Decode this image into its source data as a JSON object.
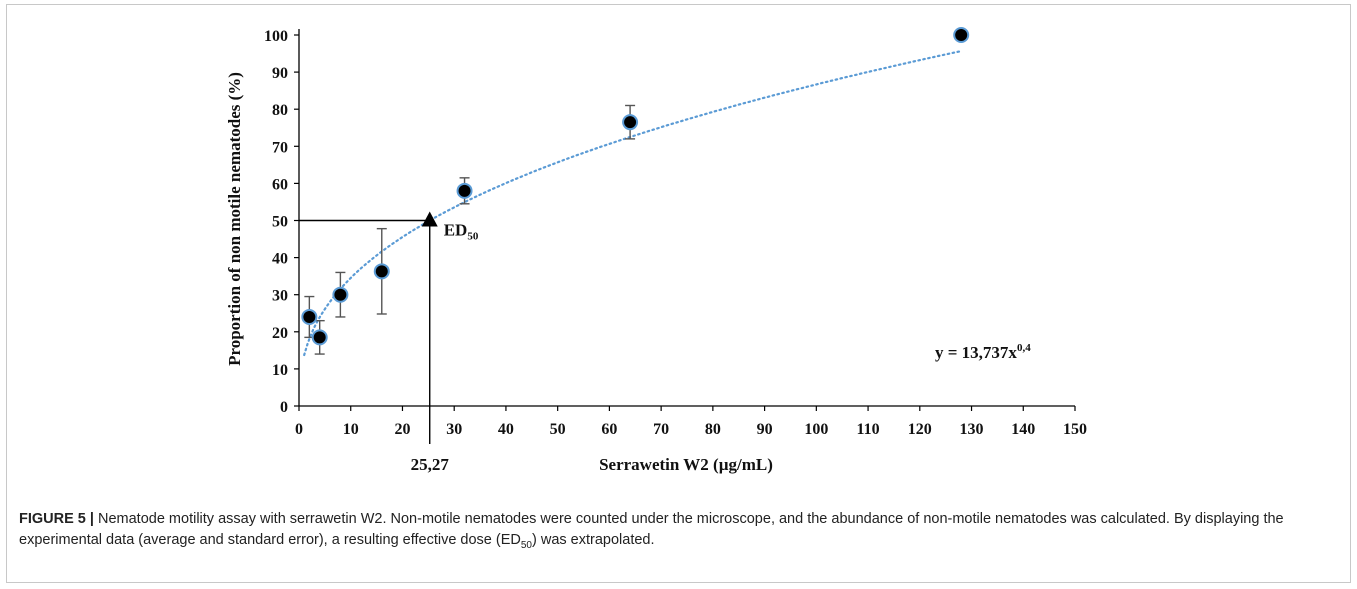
{
  "chart_data": {
    "type": "scatter",
    "xlabel": "Serrawetin W2 (µg/mL)",
    "ylabel": "Proportion of non motile nematodes (%)",
    "xlim": [
      0,
      150
    ],
    "ylim": [
      0,
      100
    ],
    "x_ticks": [
      "0",
      "10",
      "20",
      "30",
      "40",
      "50",
      "60",
      "70",
      "80",
      "90",
      "100",
      "110",
      "120",
      "130",
      "140",
      "150"
    ],
    "y_ticks": [
      "0",
      "10",
      "20",
      "30",
      "40",
      "50",
      "60",
      "70",
      "80",
      "90",
      "100"
    ],
    "grid": false,
    "legend": "none",
    "series": [
      {
        "x": [
          2,
          4,
          8,
          16,
          32,
          64,
          128
        ],
        "y": [
          24,
          18.5,
          30,
          36.3,
          58,
          76.5,
          100
        ],
        "err": [
          5.5,
          4.5,
          6,
          11.5,
          3.5,
          4.5,
          0
        ]
      }
    ],
    "trendline": {
      "coef": 13.737,
      "exp": 0.4,
      "x_range": [
        1,
        128
      ],
      "color": "#5b9bd5",
      "style": "dotted"
    },
    "equation": {
      "prefix": "y = 13,737x",
      "exponent": "0,4"
    },
    "ed50": {
      "x": 25.27,
      "y": 50,
      "label_main": "ED",
      "label_sub": "50",
      "x_label": "25,27"
    },
    "marker_fill": "#000000",
    "marker_stroke": "#5b9bd5"
  },
  "caption": {
    "label": "FIGURE 5 |",
    "text": " Nematode motility assay with serrawetin W2. Non-motile nematodes were counted under the microscope, and the abundance of non-motile nematodes was calculated. By displaying the experimental data (average and standard error), a resulting effective dose (ED",
    "sub": "50",
    "tail": ") was extrapolated."
  }
}
